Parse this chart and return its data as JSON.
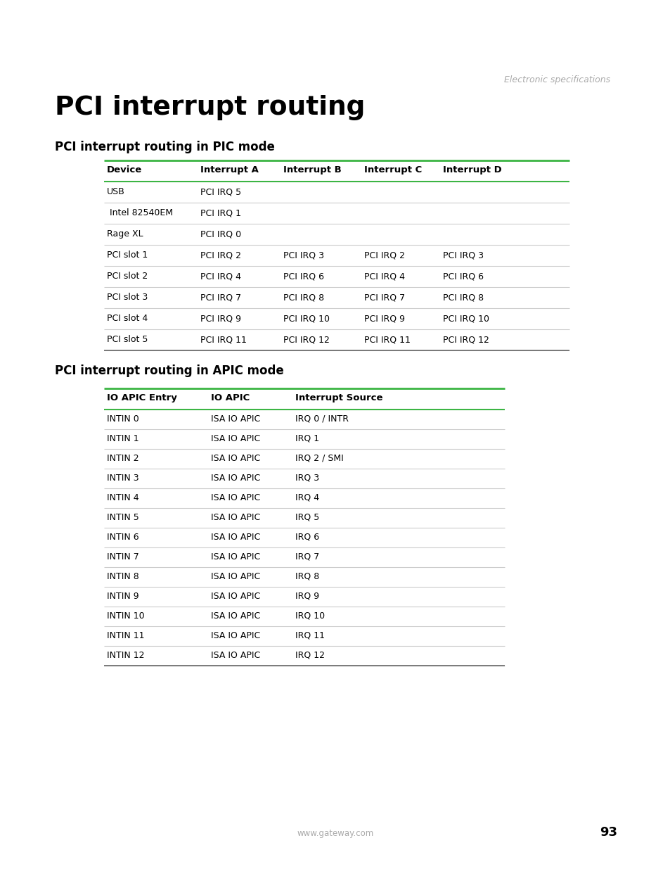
{
  "page_title": "PCI interrupt routing",
  "subtitle_italic": "Electronic specifications",
  "section1_title": "PCI interrupt routing in PIC mode",
  "section2_title": "PCI interrupt routing in APIC mode",
  "pic_headers": [
    "Device",
    "Interrupt A",
    "Interrupt B",
    "Interrupt C",
    "Interrupt D"
  ],
  "pic_rows": [
    [
      "USB",
      "PCI IRQ 5",
      "",
      "",
      ""
    ],
    [
      " Intel 82540EM",
      "PCI IRQ 1",
      "",
      "",
      ""
    ],
    [
      "Rage XL",
      "PCI IRQ 0",
      "",
      "",
      ""
    ],
    [
      "PCI slot 1",
      "PCI IRQ 2",
      "PCI IRQ 3",
      "PCI IRQ 2",
      "PCI IRQ 3"
    ],
    [
      "PCI slot 2",
      "PCI IRQ 4",
      "PCI IRQ 6",
      "PCI IRQ 4",
      "PCI IRQ 6"
    ],
    [
      "PCI slot 3",
      "PCI IRQ 7",
      "PCI IRQ 8",
      "PCI IRQ 7",
      "PCI IRQ 8"
    ],
    [
      "PCI slot 4",
      "PCI IRQ 9",
      "PCI IRQ 10",
      "PCI IRQ 9",
      "PCI IRQ 10"
    ],
    [
      "PCI slot 5",
      "PCI IRQ 11",
      "PCI IRQ 12",
      "PCI IRQ 11",
      "PCI IRQ 12"
    ]
  ],
  "apic_headers": [
    "IO APIC Entry",
    "IO APIC",
    "Interrupt Source"
  ],
  "apic_rows": [
    [
      "INTIN 0",
      "ISA IO APIC",
      "IRQ 0 / INTR"
    ],
    [
      "INTIN 1",
      "ISA IO APIC",
      "IRQ 1"
    ],
    [
      "INTIN 2",
      "ISA IO APIC",
      "IRQ 2 / SMI"
    ],
    [
      "INTIN 3",
      "ISA IO APIC",
      "IRQ 3"
    ],
    [
      "INTIN 4",
      "ISA IO APIC",
      "IRQ 4"
    ],
    [
      "INTIN 5",
      "ISA IO APIC",
      "IRQ 5"
    ],
    [
      "INTIN 6",
      "ISA IO APIC",
      "IRQ 6"
    ],
    [
      "INTIN 7",
      "ISA IO APIC",
      "IRQ 7"
    ],
    [
      "INTIN 8",
      "ISA IO APIC",
      "IRQ 8"
    ],
    [
      "INTIN 9",
      "ISA IO APIC",
      "IRQ 9"
    ],
    [
      "INTIN 10",
      "ISA IO APIC",
      "IRQ 10"
    ],
    [
      "INTIN 11",
      "ISA IO APIC",
      "IRQ 11"
    ],
    [
      "INTIN 12",
      "ISA IO APIC",
      "IRQ 12"
    ]
  ],
  "footer_url": "www.gateway.com",
  "footer_page": "93",
  "green_color": "#3cb544",
  "gray_color": "#aaaaaa",
  "light_gray_line": "#cccccc",
  "dark_gray_line": "#666666",
  "bg_color": "#ffffff",
  "text_color": "#000000"
}
